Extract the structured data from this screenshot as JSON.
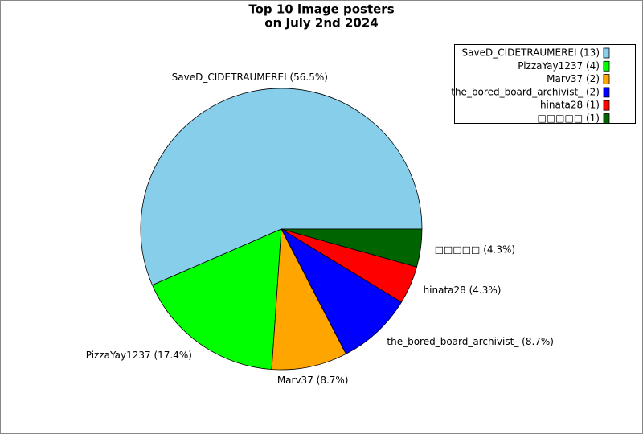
{
  "chart_data": {
    "type": "pie",
    "title": [
      "Top 10 image posters",
      "on July 2nd 2024"
    ],
    "categories": [
      "SaveD_CIDETRAUMEREI",
      "PizzaYay1237",
      "Marv37",
      "the_bored_board_archivist_",
      "hinata28",
      "□□□□□"
    ],
    "values": [
      13,
      4,
      2,
      2,
      1,
      1
    ],
    "value_labels": [
      "SaveD_CIDETRAUMEREI (56.5%)",
      "PizzaYay1237 (17.4%)",
      "Marv37 (8.7%)",
      "the_bored_board_archivist_ (8.7%)",
      "hinata28 (4.3%)",
      "□□□□□ (4.3%)"
    ],
    "legend_labels": [
      "SaveD_CIDETRAUMEREI (13)",
      "PizzaYay1237 (4)",
      "Marv37 (2)",
      "the_bored_board_archivist_ (2)",
      "hinata28 (1)",
      "□□□□□ (1)"
    ],
    "colors": [
      "#87ceeb",
      "#00ff00",
      "#ffa500",
      "#0000ff",
      "#ff0000",
      "#006400"
    ],
    "legend": "upper right"
  }
}
